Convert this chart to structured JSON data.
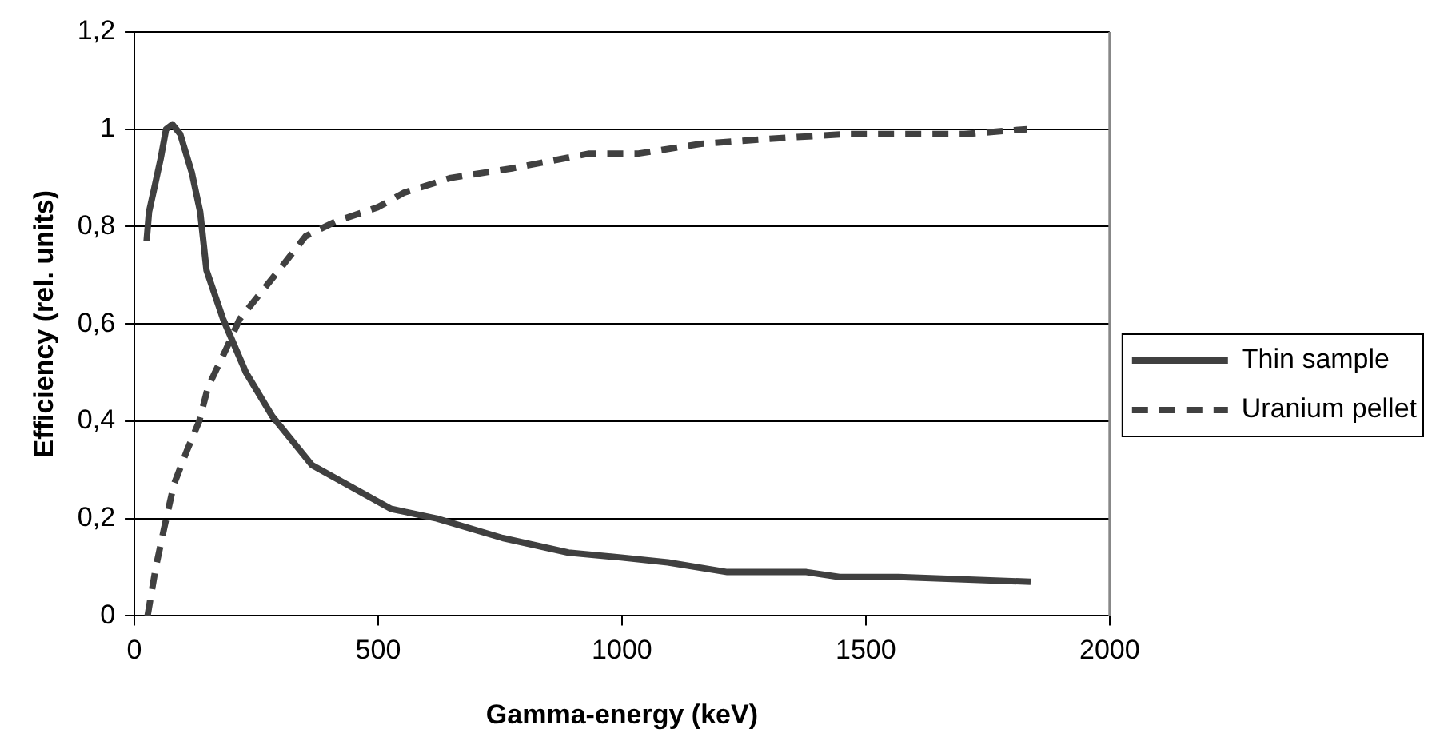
{
  "chart_data": {
    "type": "line",
    "xlabel": "Gamma-energy (keV)",
    "ylabel": "Efficiency (rel. units)",
    "xlim": [
      0,
      2000
    ],
    "xticks": [
      0,
      500,
      1000,
      1500,
      2000
    ],
    "ylim": [
      0,
      1.2
    ],
    "yticks": [
      0,
      {
        "value": 0.2,
        "label": "0,2"
      },
      {
        "value": 0.4,
        "label": "0,4"
      },
      {
        "value": 0.6,
        "label": "0,6"
      },
      {
        "value": 0.8,
        "label": "0,8"
      },
      1,
      {
        "value": 1.2,
        "label": "1,2"
      }
    ],
    "grid": "y",
    "legend": "right",
    "marker": "none",
    "series": [
      {
        "name": "Thin sample",
        "color": "#404040",
        "line_style": "solid",
        "x": [
          25,
          30,
          41,
          54,
          65,
          78,
          94,
          118,
          135,
          148,
          182,
          229,
          283,
          364,
          418,
          526,
          620,
          755,
          890,
          998,
          1094,
          1216,
          1291,
          1378,
          1446,
          1567,
          1838
        ],
        "values": [
          0.77,
          0.83,
          0.88,
          0.94,
          1.0,
          1.01,
          0.99,
          0.91,
          0.83,
          0.71,
          0.61,
          0.5,
          0.41,
          0.31,
          0.28,
          0.22,
          0.2,
          0.16,
          0.13,
          0.12,
          0.11,
          0.09,
          0.09,
          0.09,
          0.08,
          0.08,
          0.07
        ]
      },
      {
        "name": "Uranium pellet",
        "color": "#404040",
        "line_style": "dashed",
        "x": [
          27,
          44,
          61,
          81,
          108,
          133,
          151,
          189,
          216,
          264,
          304,
          351,
          412,
          500,
          554,
          649,
          777,
          933,
          1034,
          1162,
          1297,
          1459,
          1702,
          1831
        ],
        "values": [
          0,
          0.1,
          0.18,
          0.27,
          0.34,
          0.4,
          0.47,
          0.55,
          0.61,
          0.67,
          0.72,
          0.78,
          0.81,
          0.84,
          0.87,
          0.9,
          0.92,
          0.95,
          0.95,
          0.97,
          0.98,
          0.99,
          0.99,
          1.0
        ]
      }
    ]
  }
}
